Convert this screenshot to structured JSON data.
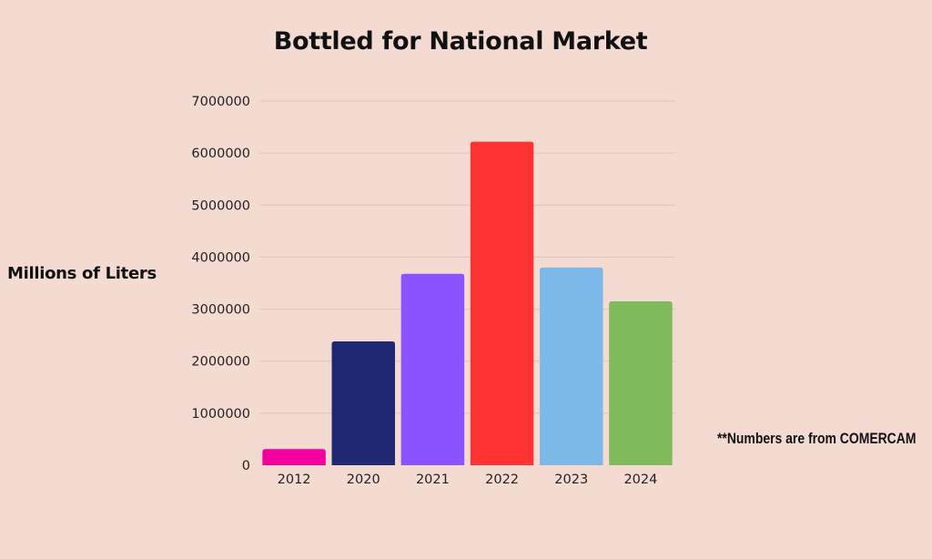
{
  "colors": {
    "background": "#f4dbd2",
    "gridline": "#dcc4bb",
    "text": "#111111"
  },
  "chart_data": {
    "type": "bar",
    "title": "Bottled for National Market",
    "ylabel": "Millions of Liters",
    "xlabel": "",
    "categories": [
      "2012",
      "2020",
      "2021",
      "2022",
      "2023",
      "2024"
    ],
    "values": [
      310000,
      2380000,
      3680000,
      6220000,
      3800000,
      3150000
    ],
    "bar_colors": [
      "#f500a0",
      "#212873",
      "#8b52ff",
      "#ff3333",
      "#7cb8e8",
      "#7fbb5a"
    ],
    "ylim": [
      0,
      7000000
    ],
    "yticks": [
      0,
      1000000,
      2000000,
      3000000,
      4000000,
      5000000,
      6000000,
      7000000
    ],
    "ytick_labels": [
      "0",
      "1000000",
      "2000000",
      "3000000",
      "4000000",
      "5000000",
      "6000000",
      "7000000"
    ],
    "grid": true,
    "legend": "none",
    "annotation": "**Numbers are from COMERCAM"
  }
}
